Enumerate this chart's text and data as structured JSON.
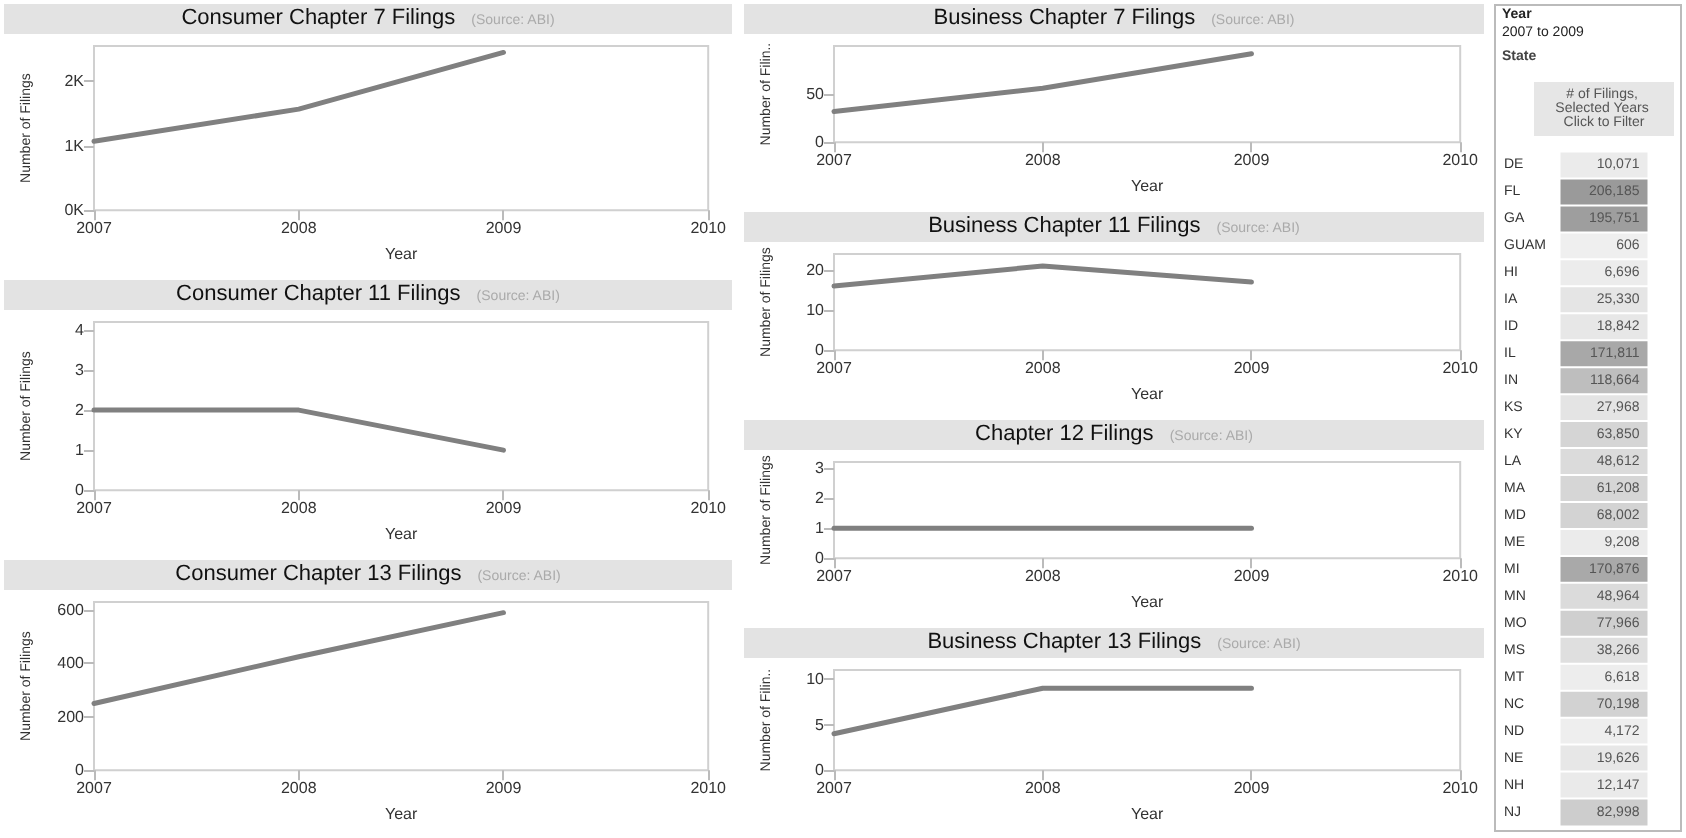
{
  "chart_data": [
    {
      "type": "line",
      "title": "Consumer Chapter 7 Filings",
      "subtitle": "(Source: ABI)",
      "xlabel": "Year",
      "ylabel": "Number of Filings",
      "x": [
        2007,
        2008,
        2009
      ],
      "values": [
        1070,
        1570,
        2450
      ],
      "color": "#808080",
      "xlim": [
        2007,
        2010
      ],
      "xticks": [
        2007,
        2008,
        2009,
        2010
      ],
      "ylim": [
        0,
        2550
      ],
      "yticks": [
        {
          "value": 0,
          "label": "0K"
        },
        {
          "value": 1000,
          "label": "1K"
        },
        {
          "value": 2000,
          "label": "2K"
        }
      ]
    },
    {
      "type": "line",
      "title": "Consumer Chapter 11 Filings",
      "subtitle": "(Source: ABI)",
      "xlabel": "Year",
      "ylabel": "Number of Filings",
      "x": [
        2007,
        2008,
        2009
      ],
      "values": [
        2,
        2,
        1
      ],
      "color": "#808080",
      "xlim": [
        2007,
        2010
      ],
      "xticks": [
        2007,
        2008,
        2009,
        2010
      ],
      "ylim": [
        0,
        4.2
      ],
      "yticks": [
        0,
        1,
        2,
        3,
        4
      ]
    },
    {
      "type": "line",
      "title": "Consumer Chapter 13 Filings",
      "subtitle": "(Source: ABI)",
      "xlabel": "Year",
      "ylabel": "Number of Filings",
      "x": [
        2007,
        2008,
        2009
      ],
      "values": [
        250,
        425,
        590
      ],
      "color": "#808080",
      "xlim": [
        2007,
        2010
      ],
      "xticks": [
        2007,
        2008,
        2009,
        2010
      ],
      "ylim": [
        0,
        630
      ],
      "yticks": [
        0,
        200,
        400,
        600
      ]
    },
    {
      "type": "line",
      "title": "Business Chapter 7 Filings",
      "subtitle": "(Source: ABI)",
      "xlabel": "Year",
      "ylabel": "Number of Filin..",
      "x": [
        2007,
        2008,
        2009
      ],
      "values": [
        32,
        56,
        92
      ],
      "color": "#808080",
      "xlim": [
        2007,
        2010
      ],
      "xticks": [
        2007,
        2008,
        2009,
        2010
      ],
      "ylim": [
        0,
        100
      ],
      "yticks": [
        0,
        50
      ]
    },
    {
      "type": "line",
      "title": "Business Chapter 11 Filings",
      "subtitle": "(Source: ABI)",
      "xlabel": "Year",
      "ylabel": "Number of Filings",
      "x": [
        2007,
        2008,
        2009
      ],
      "values": [
        16,
        21,
        17
      ],
      "color": "#808080",
      "xlim": [
        2007,
        2010
      ],
      "xticks": [
        2007,
        2008,
        2009,
        2010
      ],
      "ylim": [
        0,
        24
      ],
      "yticks": [
        0,
        10,
        20
      ]
    },
    {
      "type": "line",
      "title": "Chapter 12 Filings",
      "subtitle": "(Source: ABI)",
      "xlabel": "Year",
      "ylabel": "Number of Filings",
      "x": [
        2007,
        2008,
        2009
      ],
      "values": [
        1,
        1,
        1
      ],
      "color": "#808080",
      "xlim": [
        2007,
        2010
      ],
      "xticks": [
        2007,
        2008,
        2009,
        2010
      ],
      "ylim": [
        0,
        3.2
      ],
      "yticks": [
        0,
        1,
        2,
        3
      ]
    },
    {
      "type": "line",
      "title": "Business Chapter 13 Filings",
      "subtitle": "(Source: ABI)",
      "xlabel": "Year",
      "ylabel": "Number of Filin..",
      "x": [
        2007,
        2008,
        2009
      ],
      "values": [
        4,
        9,
        9
      ],
      "color": "#808080",
      "xlim": [
        2007,
        2010
      ],
      "xticks": [
        2007,
        2008,
        2009,
        2010
      ],
      "ylim": [
        0,
        11
      ],
      "yticks": [
        0,
        5,
        10
      ]
    },
    {
      "type": "heatmap",
      "annotations": [
        "Year",
        "2007 to 2009"
      ],
      "ylabel": "State",
      "categories": [
        "# of Filings, Selected Years Click to Filter"
      ],
      "y_categories": [
        "DE",
        "FL",
        "GA",
        "GUAM",
        "HI",
        "IA",
        "ID",
        "IL",
        "IN",
        "KS",
        "KY",
        "LA",
        "MA",
        "MD",
        "ME",
        "MI",
        "MN",
        "MO",
        "MS",
        "MT",
        "NC",
        "ND",
        "NE",
        "NH",
        "NJ"
      ],
      "cells": [
        [
          10071
        ],
        [
          206185
        ],
        [
          195751
        ],
        [
          606
        ],
        [
          6696
        ],
        [
          25330
        ],
        [
          18842
        ],
        [
          171811
        ],
        [
          118664
        ],
        [
          27968
        ],
        [
          63850
        ],
        [
          48612
        ],
        [
          61208
        ],
        [
          68002
        ],
        [
          9208
        ],
        [
          170876
        ],
        [
          48964
        ],
        [
          77966
        ],
        [
          38266
        ],
        [
          6618
        ],
        [
          70198
        ],
        [
          4172
        ],
        [
          19626
        ],
        [
          12147
        ],
        [
          82998
        ]
      ],
      "cell_labels": [
        [
          "10,071"
        ],
        [
          "206,185"
        ],
        [
          "195,751"
        ],
        [
          "606"
        ],
        [
          "6,696"
        ],
        [
          "25,330"
        ],
        [
          "18,842"
        ],
        [
          "171,811"
        ],
        [
          "118,664"
        ],
        [
          "27,968"
        ],
        [
          "63,850"
        ],
        [
          "48,612"
        ],
        [
          "61,208"
        ],
        [
          "68,002"
        ],
        [
          "9,208"
        ],
        [
          "170,876"
        ],
        [
          "48,964"
        ],
        [
          "77,966"
        ],
        [
          "38,266"
        ],
        [
          "6,618"
        ],
        [
          "70,198"
        ],
        [
          "4,172"
        ],
        [
          "19,626"
        ],
        [
          "12,147"
        ],
        [
          "82,998"
        ]
      ]
    }
  ]
}
